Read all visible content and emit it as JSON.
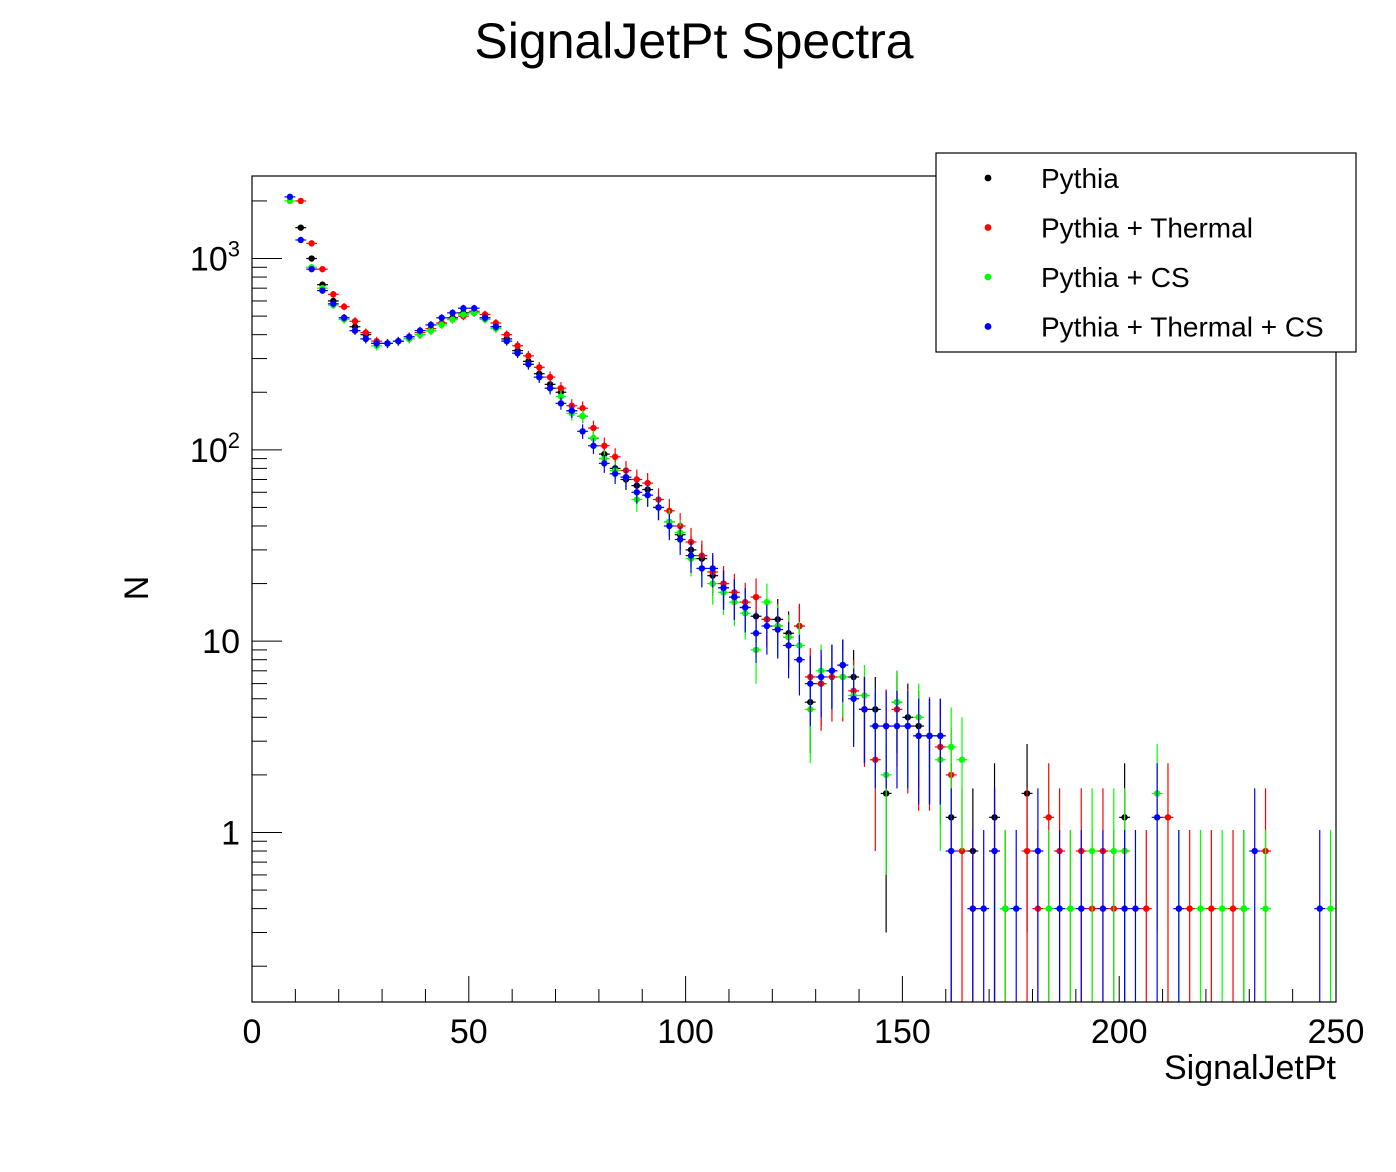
{
  "chart_data": {
    "type": "scatter",
    "title": "SignalJetPt Spectra",
    "xlabel": "SignalJetPt",
    "ylabel": "N",
    "xlim": [
      0,
      250
    ],
    "ylim": [
      0.13,
      2700
    ],
    "yscale": "log",
    "grid": false,
    "legend_position": "top-right",
    "x_ticks": [
      {
        "value": 0,
        "label": "0"
      },
      {
        "value": 50,
        "label": "50"
      },
      {
        "value": 100,
        "label": "100"
      },
      {
        "value": 150,
        "label": "150"
      },
      {
        "value": 200,
        "label": "200"
      },
      {
        "value": 250,
        "label": "250"
      }
    ],
    "y_ticks": [
      {
        "value": 1,
        "label": "1"
      },
      {
        "value": 10,
        "label": "10"
      },
      {
        "value": 100,
        "base": "10",
        "exp": "2"
      },
      {
        "value": 1000,
        "base": "10",
        "exp": "3"
      }
    ],
    "series": [
      {
        "name": "Pythia",
        "color": "#000000",
        "x": [
          11.25,
          13.75,
          16.25,
          18.75,
          21.25,
          23.75,
          26.25,
          28.75,
          31.25,
          33.75,
          36.25,
          38.75,
          41.25,
          43.75,
          46.25,
          48.75,
          51.25,
          53.75,
          56.25,
          58.75,
          61.25,
          63.75,
          66.25,
          68.75,
          71.25,
          73.75,
          76.25,
          78.75,
          81.25,
          83.75,
          86.25,
          88.75,
          91.25,
          93.75,
          96.25,
          98.75,
          101.25,
          103.75,
          106.25,
          108.75,
          111.25,
          113.75,
          116.25,
          118.75,
          121.25,
          123.75,
          126.25,
          128.75,
          131.25,
          133.75,
          136.25,
          138.75,
          141.25,
          143.75,
          146.25,
          148.75,
          151.25,
          153.75,
          156.25,
          158.75,
          161.25,
          166.25,
          171.25,
          173.75,
          178.75,
          201.25,
          228.75
        ],
        "y": [
          1450,
          1000,
          730,
          600,
          490,
          440,
          400,
          360,
          360,
          370,
          380,
          400,
          420,
          460,
          490,
          520,
          520,
          490,
          440,
          380,
          330,
          290,
          250,
          220,
          200,
          160,
          150,
          115,
          95,
          80,
          70,
          65,
          62,
          50,
          42,
          36,
          30,
          27,
          22,
          19,
          17,
          15,
          13.5,
          13,
          13,
          11,
          12,
          4.8,
          6,
          7,
          7.5,
          6.5,
          4.4,
          4.4,
          1.6,
          4.8,
          4,
          3.6,
          3.2,
          3.2,
          1.2,
          0.8,
          1.2,
          0.4,
          1.6,
          1.2,
          0.4
        ],
        "err": [
          40,
          32,
          27,
          24,
          22,
          21,
          20,
          19,
          19,
          19,
          19,
          20,
          20,
          21,
          22,
          23,
          23,
          22,
          21,
          19,
          18,
          17,
          16,
          15,
          14,
          13,
          12,
          11,
          10,
          9,
          8.4,
          8.1,
          7.9,
          7.1,
          6.5,
          6,
          5.5,
          5.2,
          4.7,
          4.4,
          4.1,
          3.9,
          3.7,
          3.6,
          3.6,
          3.3,
          3.5,
          2.2,
          2.4,
          2.6,
          2.7,
          2.5,
          2.1,
          2.1,
          1.3,
          2.2,
          2,
          1.9,
          1.8,
          1.8,
          1.1,
          0.9,
          1.1,
          0.63,
          1.3,
          1.1,
          0.63
        ]
      },
      {
        "name": "Pythia + Thermal",
        "color": "#ff0000",
        "x": [
          11.25,
          13.75,
          16.25,
          18.75,
          21.25,
          23.75,
          26.25,
          28.75,
          31.25,
          33.75,
          36.25,
          38.75,
          41.25,
          43.75,
          46.25,
          48.75,
          51.25,
          53.75,
          56.25,
          58.75,
          61.25,
          63.75,
          66.25,
          68.75,
          71.25,
          73.75,
          76.25,
          78.75,
          81.25,
          83.75,
          86.25,
          88.75,
          91.25,
          93.75,
          96.25,
          98.75,
          101.25,
          103.75,
          106.25,
          108.75,
          111.25,
          113.75,
          116.25,
          118.75,
          121.25,
          123.75,
          126.25,
          128.75,
          131.25,
          133.75,
          136.25,
          138.75,
          141.25,
          143.75,
          146.25,
          148.75,
          151.25,
          153.75,
          156.25,
          158.75,
          161.25,
          163.75,
          166.25,
          171.25,
          173.75,
          178.75,
          181.25,
          183.75,
          186.25,
          188.75,
          191.25,
          193.75,
          196.25,
          198.75,
          201.25,
          206.25,
          211.25,
          216.25,
          221.25,
          226.25,
          233.75
        ],
        "y": [
          2000,
          1200,
          880,
          650,
          560,
          470,
          410,
          370,
          360,
          370,
          390,
          410,
          430,
          460,
          480,
          500,
          530,
          510,
          460,
          400,
          350,
          310,
          270,
          240,
          210,
          170,
          165,
          130,
          105,
          92,
          78,
          70,
          67,
          55,
          48,
          40,
          33,
          28,
          23,
          20,
          18,
          16,
          17,
          13,
          12,
          10.5,
          12,
          6.5,
          6,
          6.5,
          6.5,
          5.5,
          4.4,
          2.4,
          3.6,
          4.4,
          3.6,
          3.2,
          3.2,
          2.8,
          2,
          0.8,
          0.4,
          0.8,
          0.4,
          0.8,
          0.4,
          1.2,
          0.8,
          0.4,
          0.8,
          0.4,
          0.8,
          0.4,
          0.8,
          0.4,
          1.2,
          0.4,
          0.4,
          0.4,
          0.8
        ],
        "err": [
          47,
          36,
          31,
          27,
          25,
          23,
          21,
          20,
          20,
          20,
          20,
          21,
          22,
          23,
          23,
          24,
          24,
          24,
          23,
          21,
          20,
          19,
          18,
          17,
          16,
          14,
          14,
          12,
          11,
          10,
          9.4,
          8.9,
          8.7,
          7.9,
          7.3,
          6.7,
          6.1,
          5.6,
          5.1,
          4.7,
          4.5,
          4.2,
          4.3,
          3.8,
          3.7,
          3.4,
          3.7,
          2.7,
          2.6,
          2.7,
          2.7,
          2.5,
          2.2,
          1.6,
          2,
          2.2,
          2,
          1.9,
          1.9,
          1.7,
          1.5,
          0.9,
          0.63,
          0.9,
          0.63,
          0.9,
          0.63,
          1.1,
          0.9,
          0.63,
          0.9,
          0.63,
          0.9,
          0.63,
          0.9,
          0.63,
          1.1,
          0.63,
          0.63,
          0.63,
          0.9
        ]
      },
      {
        "name": "Pythia + CS",
        "color": "#00ff00",
        "x": [
          8.75,
          13.75,
          16.25,
          18.75,
          21.25,
          23.75,
          26.25,
          28.75,
          31.25,
          33.75,
          36.25,
          38.75,
          41.25,
          43.75,
          46.25,
          48.75,
          51.25,
          53.75,
          56.25,
          58.75,
          61.25,
          63.75,
          66.25,
          68.75,
          71.25,
          73.75,
          76.25,
          78.75,
          81.25,
          83.75,
          86.25,
          88.75,
          91.25,
          93.75,
          96.25,
          98.75,
          101.25,
          103.75,
          106.25,
          108.75,
          111.25,
          113.75,
          116.25,
          118.75,
          121.25,
          123.75,
          126.25,
          128.75,
          131.25,
          133.75,
          136.25,
          138.75,
          141.25,
          143.75,
          146.25,
          148.75,
          151.25,
          153.75,
          156.25,
          158.75,
          161.25,
          163.75,
          173.75,
          183.75,
          188.75,
          193.75,
          198.75,
          201.25,
          208.75,
          213.75,
          218.75,
          223.75,
          228.75,
          233.75,
          248.75
        ],
        "y": [
          2000,
          900,
          700,
          570,
          480,
          420,
          380,
          350,
          360,
          370,
          380,
          400,
          420,
          450,
          480,
          510,
          520,
          480,
          430,
          370,
          320,
          280,
          240,
          210,
          190,
          155,
          150,
          115,
          90,
          78,
          72,
          55,
          58,
          50,
          42,
          37,
          27,
          24,
          20,
          18,
          16,
          14,
          9,
          16,
          12,
          10.5,
          9.5,
          4.4,
          7,
          7,
          6.5,
          5.2,
          5.2,
          3.6,
          2,
          4.8,
          3.6,
          4,
          3.2,
          2.4,
          2.8,
          2.4,
          0.4,
          0.4,
          0.4,
          0.8,
          0.8,
          0.8,
          1.6,
          0.4,
          0.4,
          0.4,
          0.4,
          0.4,
          0.4
        ],
        "err": [
          47,
          32,
          28,
          25,
          23,
          21,
          20,
          19,
          19,
          19,
          20,
          20,
          21,
          22,
          23,
          23,
          24,
          23,
          22,
          20,
          19,
          18,
          16,
          15,
          14,
          13,
          12,
          11,
          9.8,
          9,
          8.6,
          7.6,
          7.7,
          7.1,
          6.5,
          6.1,
          5.2,
          4.9,
          4.5,
          4.3,
          4,
          3.8,
          3,
          4,
          3.5,
          3.2,
          3.1,
          2.1,
          2.6,
          2.6,
          2.5,
          2.3,
          2.3,
          1.9,
          1.4,
          2.2,
          1.9,
          2,
          1.8,
          1.6,
          1.7,
          1.6,
          0.63,
          0.63,
          0.63,
          0.9,
          0.9,
          0.9,
          1.3,
          0.63,
          0.63,
          0.63,
          0.63,
          0.63,
          0.63
        ]
      },
      {
        "name": "Pythia + Thermal + CS",
        "color": "#0000ff",
        "x": [
          8.75,
          11.25,
          13.75,
          16.25,
          18.75,
          21.25,
          23.75,
          26.25,
          28.75,
          31.25,
          33.75,
          36.25,
          38.75,
          41.25,
          43.75,
          46.25,
          48.75,
          51.25,
          53.75,
          56.25,
          58.75,
          61.25,
          63.75,
          66.25,
          68.75,
          71.25,
          73.75,
          76.25,
          78.75,
          81.25,
          83.75,
          86.25,
          88.75,
          91.25,
          93.75,
          96.25,
          98.75,
          101.25,
          103.75,
          106.25,
          108.75,
          111.25,
          113.75,
          116.25,
          118.75,
          121.25,
          123.75,
          126.25,
          128.75,
          131.25,
          133.75,
          136.25,
          138.75,
          141.25,
          143.75,
          146.25,
          148.75,
          151.25,
          153.75,
          156.25,
          158.75,
          161.25,
          166.25,
          168.75,
          171.25,
          176.25,
          181.25,
          186.25,
          191.25,
          196.25,
          201.25,
          203.75,
          208.75,
          213.75,
          231.25,
          246.25
        ],
        "y": [
          2100,
          1250,
          880,
          680,
          580,
          490,
          420,
          380,
          360,
          360,
          370,
          390,
          420,
          450,
          490,
          520,
          550,
          550,
          490,
          440,
          370,
          320,
          280,
          240,
          210,
          175,
          160,
          125,
          105,
          85,
          75,
          72,
          60,
          58,
          50,
          40,
          34,
          28,
          24,
          24,
          19,
          17,
          15,
          11,
          12,
          11.5,
          9.5,
          8,
          6,
          6.5,
          7,
          7.5,
          5,
          4.4,
          3.6,
          3.6,
          3.6,
          3.6,
          3.2,
          3.2,
          3.2,
          0.8,
          0.4,
          0.4,
          0.8,
          0.4,
          0.8,
          0.4,
          0.4,
          0.4,
          0.4,
          0.4,
          1.2,
          0.4,
          0.8,
          0.4
        ],
        "err": [
          47,
          35,
          30,
          26,
          24,
          22,
          21,
          20,
          19,
          19,
          19,
          20,
          20,
          21,
          22,
          23,
          23,
          23,
          22,
          21,
          19,
          18,
          17,
          16,
          15,
          13,
          13,
          11,
          10,
          9.2,
          8.7,
          8.5,
          7.7,
          7.6,
          7.1,
          6.3,
          5.8,
          5.3,
          4.9,
          4.9,
          4.4,
          4.1,
          3.9,
          3.3,
          3.5,
          3.4,
          3.1,
          2.8,
          2.4,
          2.5,
          2.6,
          2.7,
          2.2,
          2.1,
          1.9,
          1.9,
          1.9,
          1.9,
          1.8,
          1.8,
          1.8,
          0.9,
          0.63,
          0.63,
          0.9,
          0.63,
          0.9,
          0.63,
          0.63,
          0.63,
          0.63,
          0.63,
          1.1,
          0.63,
          0.9,
          0.63
        ]
      }
    ]
  }
}
